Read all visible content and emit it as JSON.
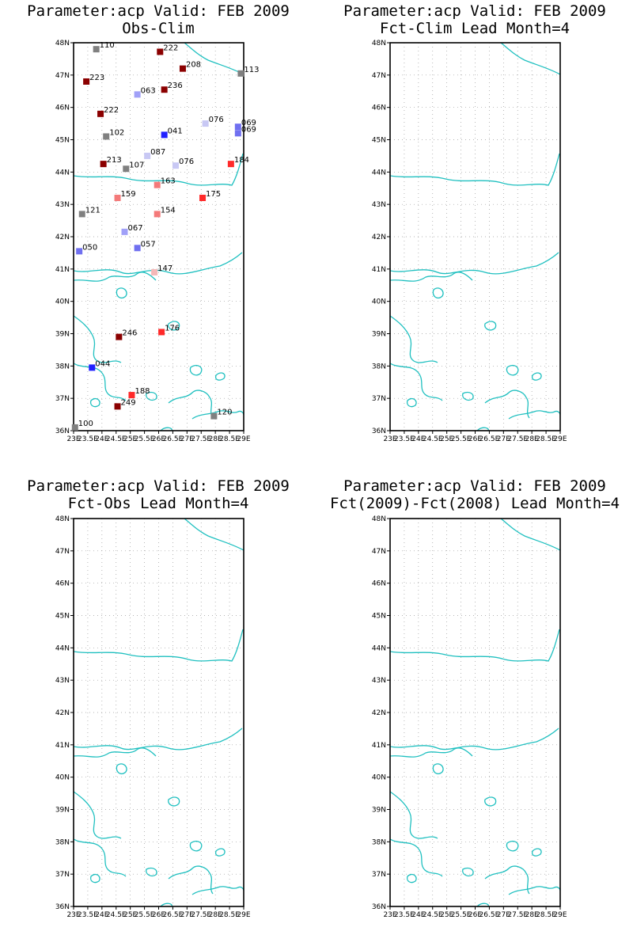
{
  "colors": {
    "coast": "#20c0c0",
    "grid": "#9a9a9a",
    "frame": "#000000",
    "category_colors": {
      "strong_above": "#8b0000",
      "above": "#ff2a2a",
      "slightly_above": "#f47a7a",
      "near_above": "#f4b8b8",
      "near_below": "#c8c8f4",
      "slightly_below": "#a0a0f8",
      "below": "#7070f0",
      "strong_below": "#2020ff",
      "no_category": "#808080"
    }
  },
  "axes": {
    "lon_min": 23,
    "lon_max": 29,
    "lon_step": 0.5,
    "lat_min": 36,
    "lat_max": 48,
    "lat_step": 1,
    "lon_tick_labels": [
      "23E",
      "23.5E",
      "24E",
      "24.5E",
      "25E",
      "25.5E",
      "26E",
      "26.5E",
      "27E",
      "27.5E",
      "28E",
      "28.5E",
      "29E"
    ],
    "lat_tick_labels": [
      "36N",
      "37N",
      "38N",
      "39N",
      "40N",
      "41N",
      "42N",
      "43N",
      "44N",
      "45N",
      "46N",
      "47N",
      "48N"
    ]
  },
  "panels": [
    {
      "id": "obs-clim",
      "title_line1": "Parameter:acp Valid: FEB 2009",
      "title_line2": "Obs-Clim"
    },
    {
      "id": "fct-clim",
      "title_line1": "Parameter:acp Valid: FEB 2009",
      "title_line2": "Fct-Clim Lead Month=4"
    },
    {
      "id": "fct-obs",
      "title_line1": "Parameter:acp Valid: FEB 2009",
      "title_line2": "Fct-Obs Lead Month=4"
    },
    {
      "id": "fct-diff",
      "title_line1": "Parameter:acp Valid: FEB 2009",
      "title_line2": "Fct(2009)-Fct(2008) Lead Month=4"
    }
  ],
  "chart_data": {
    "type": "scatter",
    "panel": "obs-clim",
    "stations": [
      {
        "lon": 23.8,
        "lat": 47.8,
        "label": "110",
        "cat": "no_category"
      },
      {
        "lon": 26.05,
        "lat": 47.72,
        "label": "222",
        "cat": "strong_above"
      },
      {
        "lon": 26.85,
        "lat": 47.2,
        "label": "208",
        "cat": "strong_above"
      },
      {
        "lon": 28.9,
        "lat": 47.05,
        "label": "113",
        "cat": "no_category"
      },
      {
        "lon": 23.45,
        "lat": 46.8,
        "label": "223",
        "cat": "strong_above"
      },
      {
        "lon": 26.2,
        "lat": 46.55,
        "label": "236",
        "cat": "strong_above"
      },
      {
        "lon": 25.25,
        "lat": 46.4,
        "label": "063",
        "cat": "slightly_below"
      },
      {
        "lon": 23.95,
        "lat": 45.8,
        "label": "222",
        "cat": "strong_above"
      },
      {
        "lon": 27.65,
        "lat": 45.5,
        "label": "076",
        "cat": "near_below"
      },
      {
        "lon": 28.8,
        "lat": 45.4,
        "label": "069",
        "cat": "below"
      },
      {
        "lon": 28.8,
        "lat": 45.2,
        "label": "069",
        "cat": "below"
      },
      {
        "lon": 24.15,
        "lat": 45.1,
        "label": "102",
        "cat": "no_category"
      },
      {
        "lon": 26.2,
        "lat": 45.15,
        "label": "041",
        "cat": "strong_below"
      },
      {
        "lon": 25.6,
        "lat": 44.5,
        "label": "087",
        "cat": "near_below"
      },
      {
        "lon": 24.05,
        "lat": 44.25,
        "label": "213",
        "cat": "strong_above"
      },
      {
        "lon": 24.85,
        "lat": 44.1,
        "label": "107",
        "cat": "no_category"
      },
      {
        "lon": 26.6,
        "lat": 44.2,
        "label": "076",
        "cat": "near_below"
      },
      {
        "lon": 28.55,
        "lat": 44.25,
        "label": "184",
        "cat": "above"
      },
      {
        "lon": 25.95,
        "lat": 43.6,
        "label": "163",
        "cat": "slightly_above"
      },
      {
        "lon": 24.55,
        "lat": 43.2,
        "label": "159",
        "cat": "slightly_above"
      },
      {
        "lon": 27.55,
        "lat": 43.2,
        "label": "175",
        "cat": "above"
      },
      {
        "lon": 23.3,
        "lat": 42.7,
        "label": "121",
        "cat": "no_category"
      },
      {
        "lon": 25.95,
        "lat": 42.7,
        "label": "154",
        "cat": "slightly_above"
      },
      {
        "lon": 24.8,
        "lat": 42.15,
        "label": "067",
        "cat": "slightly_below"
      },
      {
        "lon": 25.25,
        "lat": 41.65,
        "label": "057",
        "cat": "below"
      },
      {
        "lon": 23.2,
        "lat": 41.55,
        "label": "050",
        "cat": "below"
      },
      {
        "lon": 25.85,
        "lat": 40.9,
        "label": "147",
        "cat": "near_above"
      },
      {
        "lon": 26.1,
        "lat": 39.05,
        "label": "176",
        "cat": "above"
      },
      {
        "lon": 24.6,
        "lat": 38.9,
        "label": "246",
        "cat": "strong_above"
      },
      {
        "lon": 23.65,
        "lat": 37.95,
        "label": "044",
        "cat": "strong_below"
      },
      {
        "lon": 25.05,
        "lat": 37.1,
        "label": "188",
        "cat": "above"
      },
      {
        "lon": 24.55,
        "lat": 36.75,
        "label": "249",
        "cat": "strong_above"
      },
      {
        "lon": 27.95,
        "lat": 36.45,
        "label": "120",
        "cat": "no_category"
      },
      {
        "lon": 23.05,
        "lat": 36.1,
        "label": "100",
        "cat": "no_category"
      }
    ]
  }
}
